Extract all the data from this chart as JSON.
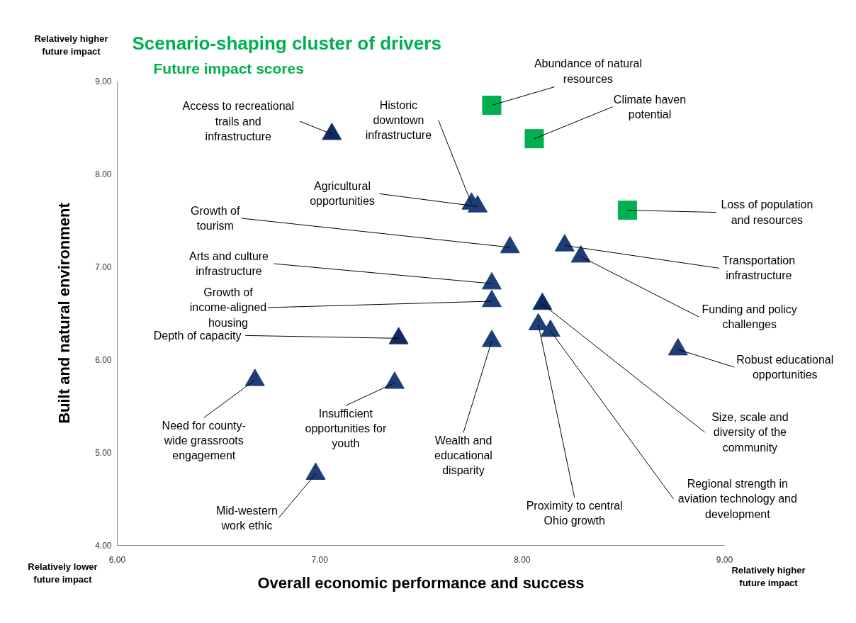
{
  "chart_data": {
    "type": "scatter",
    "title": "Scenario-shaping cluster of drivers",
    "subtitle": "Future impact scores",
    "xlabel": "Overall economic performance and success",
    "ylabel": "Built and natural environment",
    "xlim": [
      6,
      9
    ],
    "ylim": [
      4,
      9
    ],
    "xticks": [
      {
        "value": 6,
        "label": "6.00"
      },
      {
        "value": 7,
        "label": "7.00"
      },
      {
        "value": 8,
        "label": "8.00"
      },
      {
        "value": 9,
        "label": "9.00"
      }
    ],
    "yticks": [
      {
        "value": 4,
        "label": "4.00"
      },
      {
        "value": 5,
        "label": "5.00"
      },
      {
        "value": 6,
        "label": "6.00"
      },
      {
        "value": 7,
        "label": "7.00"
      },
      {
        "value": 8,
        "label": "8.00"
      },
      {
        "value": 9,
        "label": "9.00"
      }
    ],
    "grid": false,
    "series": [
      {
        "marker": "square",
        "color": "#00b050",
        "x": [
          7.85,
          8.06,
          8.52
        ],
        "values": [
          8.74,
          8.38,
          7.61
        ]
      },
      {
        "marker": "triangle",
        "color": "#1f3e78",
        "x": [
          7.06,
          7.75,
          7.78,
          7.94,
          8.21,
          8.29,
          7.85,
          7.85,
          8.1,
          7.39,
          7.85,
          8.08,
          8.14,
          8.77,
          6.68,
          7.37,
          6.98
        ],
        "values": [
          8.43,
          7.68,
          7.65,
          7.21,
          7.23,
          7.11,
          6.82,
          6.63,
          6.6,
          6.23,
          6.2,
          6.38,
          6.31,
          6.11,
          5.78,
          5.75,
          4.77
        ],
        "colors": [
          "#0f2a5c",
          "#1f3e78",
          "#1f3e78",
          "#1f3e78",
          "#1f3e78",
          "#1f3e78",
          "#1f3e78",
          "#1f3e78",
          "#0f2a5c",
          "#0f2a5c",
          "#1f3e78",
          "#1f3e78",
          "#1f3e78",
          "#1f3e78",
          "#1f3e78",
          "#1f3e78",
          "#1f3e78"
        ]
      }
    ],
    "annotations": [
      {
        "text": "Abundance of natural resources",
        "x": 7.85,
        "y": 8.74
      },
      {
        "text": "Climate haven potential",
        "x": 8.06,
        "y": 8.38
      },
      {
        "text": "Loss of population and resources",
        "x": 8.52,
        "y": 7.61
      },
      {
        "text": "Access to recreational trails and infrastructure",
        "x": 7.06,
        "y": 8.43
      },
      {
        "text": "Historic downtown infrastructure",
        "x": 7.75,
        "y": 7.68
      },
      {
        "text": "Agricultural opportunities",
        "x": 7.78,
        "y": 7.65
      },
      {
        "text": "Growth of tourism",
        "x": 7.94,
        "y": 7.21
      },
      {
        "text": "Arts and culture infrastructure",
        "x": 7.85,
        "y": 6.82
      },
      {
        "text": "Growth of income-aligned housing",
        "x": 7.85,
        "y": 6.63
      },
      {
        "text": "Depth of capacity",
        "x": 7.39,
        "y": 6.23
      },
      {
        "text": "Need for county-wide grassroots engagement",
        "x": 6.68,
        "y": 5.78
      },
      {
        "text": "Insufficient opportunities for youth",
        "x": 7.37,
        "y": 5.75
      },
      {
        "text": "Mid-western work ethic",
        "x": 6.98,
        "y": 4.77
      },
      {
        "text": "Wealth and educational disparity",
        "x": 7.85,
        "y": 6.2
      },
      {
        "text": "Proximity to central Ohio growth",
        "x": 8.08,
        "y": 6.38
      },
      {
        "text": "Regional strength in aviation technology and development",
        "x": 8.14,
        "y": 6.31
      },
      {
        "text": "Size, scale and diversity of the community",
        "x": 8.1,
        "y": 6.6
      },
      {
        "text": "Robust educational opportunities",
        "x": 8.77,
        "y": 6.11
      },
      {
        "text": "Funding and policy challenges",
        "x": 8.29,
        "y": 7.11
      },
      {
        "text": "Transportation infrastructure",
        "x": 8.21,
        "y": 7.23
      },
      "Relatively higher future impact",
      "Relatively lower future impact",
      "Relatively higher future impact"
    ]
  }
}
